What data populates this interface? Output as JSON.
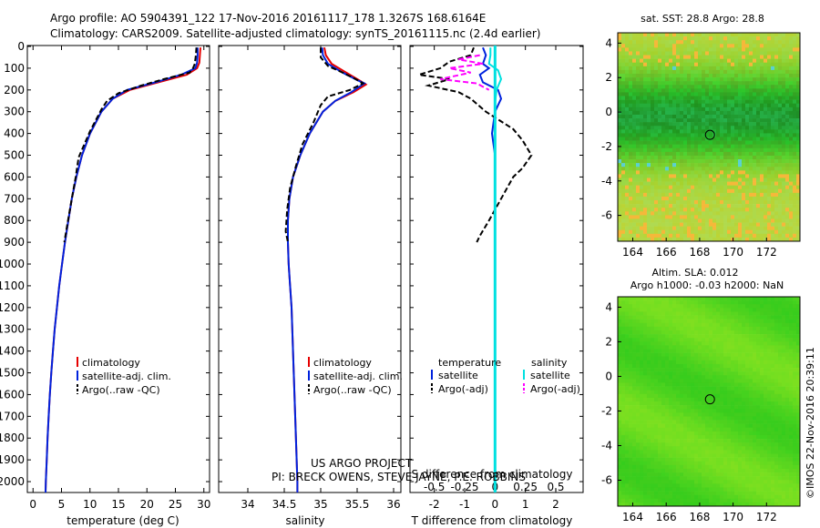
{
  "header": {
    "line1": "Argo profile: AO 5904391_122 17-Nov-2016 20161117_178 1.3267S 168.6164E",
    "line2": "Climatology: CARS2009. Satellite-adjusted climatology: synTS_20161115.nc (2.4d earlier)"
  },
  "colors": {
    "climatology": "#e60000",
    "satellite": "#0022dd",
    "argo": "#000000",
    "sal_satellite": "#00e0e0",
    "sal_argo": "#ff00ff",
    "sst_main": "#2ea84a",
    "sst_edge": "#c6e92a",
    "sla_main": "#8ad52a"
  },
  "chart_data": [
    {
      "type": "line",
      "panel": "temperature",
      "xlabel": "temperature (deg C)",
      "xlim": [
        -1,
        31
      ],
      "xticks": [
        0,
        5,
        10,
        15,
        20,
        25,
        30
      ],
      "ylabel": "",
      "ylim": [
        2050,
        0
      ],
      "yticks": [
        0,
        100,
        200,
        300,
        400,
        500,
        600,
        700,
        800,
        900,
        1000,
        1100,
        1200,
        1300,
        1400,
        1500,
        1600,
        1700,
        1800,
        1900,
        2000
      ],
      "legend": [
        "climatology",
        "satellite-adj. clim.",
        "Argo(..raw -QC)"
      ],
      "series": [
        {
          "name": "climatology",
          "color": "#e60000",
          "points": [
            [
              29.4,
              5
            ],
            [
              29.3,
              40
            ],
            [
              29.2,
              75
            ],
            [
              28.8,
              100
            ],
            [
              27,
              130
            ],
            [
              22,
              165
            ],
            [
              17,
              200
            ],
            [
              14,
              240
            ],
            [
              12,
              300
            ],
            [
              10,
              400
            ],
            [
              8.6,
              500
            ],
            [
              7.6,
              600
            ],
            [
              6.8,
              700
            ],
            [
              6.2,
              800
            ],
            [
              5.6,
              900
            ],
            [
              5.1,
              1000
            ],
            [
              4.6,
              1100
            ],
            [
              4.2,
              1200
            ],
            [
              3.8,
              1300
            ],
            [
              3.5,
              1400
            ],
            [
              3.2,
              1500
            ],
            [
              2.95,
              1600
            ],
            [
              2.75,
              1700
            ],
            [
              2.55,
              1800
            ],
            [
              2.4,
              1900
            ],
            [
              2.25,
              2000
            ],
            [
              2.2,
              2050
            ]
          ]
        },
        {
          "name": "satellite-adj. clim.",
          "color": "#0022dd",
          "points": [
            [
              28.9,
              5
            ],
            [
              28.9,
              40
            ],
            [
              28.8,
              75
            ],
            [
              28.5,
              100
            ],
            [
              26,
              130
            ],
            [
              21.5,
              165
            ],
            [
              16.5,
              200
            ],
            [
              14,
              240
            ],
            [
              12,
              300
            ],
            [
              10,
              400
            ],
            [
              8.6,
              500
            ],
            [
              7.6,
              600
            ],
            [
              6.8,
              700
            ],
            [
              6.2,
              800
            ],
            [
              5.6,
              900
            ],
            [
              5.1,
              1000
            ],
            [
              4.6,
              1100
            ],
            [
              4.2,
              1200
            ],
            [
              3.8,
              1300
            ],
            [
              3.5,
              1400
            ],
            [
              3.2,
              1500
            ],
            [
              2.95,
              1600
            ],
            [
              2.75,
              1700
            ],
            [
              2.55,
              1800
            ],
            [
              2.4,
              1900
            ],
            [
              2.25,
              2000
            ],
            [
              2.2,
              2050
            ]
          ]
        },
        {
          "name": "Argo(..raw -QC)",
          "color": "#000000",
          "dashed": true,
          "points": [
            [
              28.7,
              5
            ],
            [
              28.6,
              40
            ],
            [
              28.4,
              80
            ],
            [
              28.1,
              100
            ],
            [
              27.5,
              120
            ],
            [
              23,
              150
            ],
            [
              19,
              180
            ],
            [
              15,
              215
            ],
            [
              13,
              250
            ],
            [
              12,
              290
            ],
            [
              10,
              390
            ],
            [
              8,
              510
            ],
            [
              7.5,
              600
            ],
            [
              6.8,
              700
            ],
            [
              6,
              820
            ],
            [
              5.5,
              900
            ]
          ]
        }
      ]
    },
    {
      "type": "line",
      "panel": "salinity",
      "xlabel": "salinity",
      "xlim": [
        33.6,
        36.1
      ],
      "xticks": [
        34,
        34.5,
        35,
        35.5,
        36
      ],
      "ylim": [
        2050,
        0
      ],
      "legend": [
        "climatology",
        "satellite-adj. clim.",
        "Argo(..raw -QC)"
      ],
      "series": [
        {
          "name": "climatology",
          "color": "#e60000",
          "points": [
            [
              35.05,
              5
            ],
            [
              35.07,
              40
            ],
            [
              35.15,
              80
            ],
            [
              35.35,
              120
            ],
            [
              35.55,
              160
            ],
            [
              35.62,
              175
            ],
            [
              35.45,
              210
            ],
            [
              35.2,
              250
            ],
            [
              35.03,
              300
            ],
            [
              34.85,
              400
            ],
            [
              34.72,
              500
            ],
            [
              34.62,
              600
            ],
            [
              34.57,
              700
            ],
            [
              34.55,
              800
            ],
            [
              34.55,
              900
            ],
            [
              34.56,
              1000
            ],
            [
              34.58,
              1100
            ],
            [
              34.6,
              1200
            ],
            [
              34.61,
              1300
            ],
            [
              34.62,
              1400
            ],
            [
              34.63,
              1500
            ],
            [
              34.64,
              1600
            ],
            [
              34.65,
              1700
            ],
            [
              34.66,
              1800
            ],
            [
              34.67,
              1900
            ],
            [
              34.68,
              2000
            ],
            [
              34.68,
              2050
            ]
          ]
        },
        {
          "name": "satellite-adj. clim.",
          "color": "#0022dd",
          "points": [
            [
              35.02,
              5
            ],
            [
              35.03,
              40
            ],
            [
              35.1,
              80
            ],
            [
              35.3,
              120
            ],
            [
              35.5,
              155
            ],
            [
              35.6,
              170
            ],
            [
              35.42,
              210
            ],
            [
              35.2,
              250
            ],
            [
              35.03,
              300
            ],
            [
              34.85,
              400
            ],
            [
              34.72,
              500
            ],
            [
              34.62,
              600
            ],
            [
              34.57,
              700
            ],
            [
              34.55,
              800
            ],
            [
              34.55,
              900
            ],
            [
              34.56,
              1000
            ],
            [
              34.58,
              1100
            ],
            [
              34.6,
              1200
            ],
            [
              34.61,
              1300
            ],
            [
              34.62,
              1400
            ],
            [
              34.63,
              1500
            ],
            [
              34.64,
              1600
            ],
            [
              34.65,
              1700
            ],
            [
              34.66,
              1800
            ],
            [
              34.67,
              1900
            ],
            [
              34.68,
              2000
            ],
            [
              34.68,
              2050
            ]
          ]
        },
        {
          "name": "Argo(..raw -QC)",
          "color": "#000000",
          "dashed": true,
          "points": [
            [
              35.0,
              5
            ],
            [
              35.0,
              50
            ],
            [
              35.1,
              90
            ],
            [
              35.3,
              120
            ],
            [
              35.48,
              150
            ],
            [
              35.58,
              170
            ],
            [
              35.4,
              200
            ],
            [
              35.1,
              230
            ],
            [
              35.0,
              270
            ],
            [
              34.9,
              350
            ],
            [
              34.75,
              450
            ],
            [
              34.66,
              550
            ],
            [
              34.58,
              650
            ],
            [
              34.54,
              750
            ],
            [
              34.52,
              850
            ],
            [
              34.55,
              900
            ]
          ]
        }
      ]
    },
    {
      "type": "line",
      "panel": "difference",
      "xlabel": "T difference from climatology",
      "xlabel_top": "S difference from climatology",
      "xlim": [
        -2.8,
        2.9
      ],
      "xticks": [
        -2,
        -1,
        0,
        1,
        2
      ],
      "xticks_top": [
        "-0.5",
        "-0.25",
        "0",
        "0.25",
        "0.5"
      ],
      "ylim": [
        2050,
        0
      ],
      "legend": {
        "temperature": [
          "satellite",
          "Argo(-adj)"
        ],
        "salinity": [
          "satellite",
          "Argo(-adj)"
        ]
      },
      "series": [
        {
          "name": "T satellite",
          "color": "#0022dd",
          "points": [
            [
              -0.4,
              5
            ],
            [
              -0.3,
              40
            ],
            [
              -0.4,
              80
            ],
            [
              -0.2,
              100
            ],
            [
              -0.5,
              130
            ],
            [
              -0.4,
              165
            ],
            [
              0.1,
              200
            ],
            [
              0.2,
              240
            ],
            [
              0,
              300
            ],
            [
              -0.1,
              400
            ],
            [
              0,
              500
            ],
            [
              0,
              1000
            ],
            [
              0,
              2050
            ]
          ]
        },
        {
          "name": "T Argo(-adj)",
          "color": "#000000",
          "dashed": true,
          "points": [
            [
              -0.7,
              5
            ],
            [
              -0.8,
              40
            ],
            [
              -1.5,
              70
            ],
            [
              -1.8,
              100
            ],
            [
              -2.5,
              130
            ],
            [
              -1.5,
              150
            ],
            [
              -2.2,
              180
            ],
            [
              -1.2,
              210
            ],
            [
              -0.8,
              240
            ],
            [
              -0.3,
              300
            ],
            [
              0.6,
              380
            ],
            [
              0.9,
              430
            ],
            [
              1.2,
              500
            ],
            [
              0.9,
              560
            ],
            [
              0.6,
              600
            ],
            [
              0.2,
              700
            ],
            [
              -0.2,
              800
            ],
            [
              -0.5,
              870
            ],
            [
              -0.6,
              900
            ]
          ]
        },
        {
          "name": "S satellite",
          "color": "#00e0e0",
          "points": [
            [
              -0.15,
              5
            ],
            [
              -0.15,
              40
            ],
            [
              -0.2,
              80
            ],
            [
              0.1,
              110
            ],
            [
              0.2,
              150
            ],
            [
              0.05,
              200
            ],
            [
              0,
              260
            ],
            [
              0,
              400
            ],
            [
              0,
              2050
            ]
          ]
        },
        {
          "name": "S Argo(-adj)",
          "color": "#ff00ff",
          "dashed": true,
          "points": [
            [
              -0.5,
              40
            ],
            [
              -1.2,
              60
            ],
            [
              -0.4,
              80
            ],
            [
              -1.5,
              100
            ],
            [
              -0.8,
              120
            ],
            [
              -1.8,
              150
            ],
            [
              -0.6,
              170
            ],
            [
              -0.2,
              200
            ]
          ]
        }
      ]
    },
    {
      "type": "heatmap",
      "panel": "sst_map",
      "title": "sat. SST: 28.8 Argo: 28.8",
      "xticks": [
        164,
        166,
        168,
        170,
        172
      ],
      "yticks": [
        4,
        2,
        0,
        -2,
        -4,
        -6
      ],
      "xlim": [
        163.1,
        174
      ],
      "ylim": [
        -7.5,
        4.6
      ],
      "marker": [
        168.6164,
        -1.3267
      ]
    },
    {
      "type": "heatmap",
      "panel": "sla_map",
      "title": "Altim. SLA: 0.012",
      "subtitle": "Argo h1000: -0.03 h2000: NaN",
      "xticks": [
        164,
        166,
        168,
        170,
        172
      ],
      "yticks": [
        4,
        2,
        0,
        -2,
        -4,
        -6
      ],
      "xlim": [
        163.1,
        174
      ],
      "ylim": [
        -7.5,
        4.6
      ],
      "marker": [
        168.6164,
        -1.3267
      ]
    }
  ],
  "legend_left": [
    "climatology",
    "satellite-adj. clim.",
    "Argo(..raw -QC)"
  ],
  "legend_diff": {
    "temperature_title": "temperature",
    "salinity_title": "salinity",
    "satellite": "satellite",
    "argo": "Argo(-adj)"
  },
  "credits": {
    "line1": "US ARGO PROJECT",
    "line2": "PI: BRECK OWENS, STEVE JAYNE, P.E. ROBBINS",
    "side": "©IMOS 22-Nov-2016 20:39:11"
  }
}
